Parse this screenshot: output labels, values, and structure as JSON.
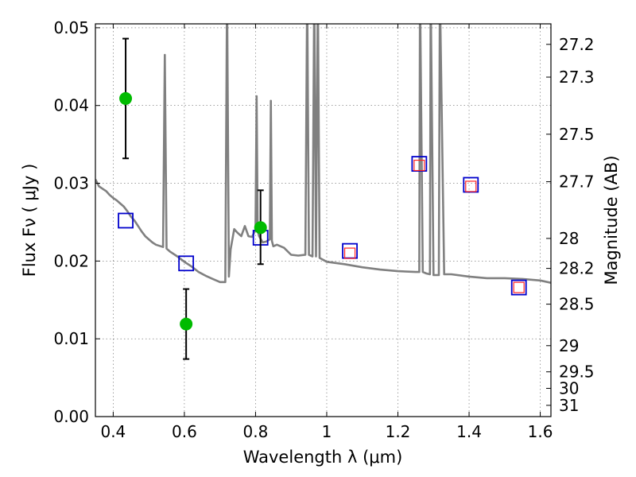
{
  "chart_data": {
    "type": "scatter",
    "xlabel": "Wavelength  λ (μm)",
    "ylabel": "Flux  Fν  ( μJy )",
    "y2label": "Magnitude (AB)",
    "xlim": [
      0.35,
      1.63
    ],
    "ylim": [
      0.0,
      0.0505
    ],
    "grid": true,
    "x_ticks": [
      0.4,
      0.6,
      0.8,
      1.0,
      1.2,
      1.4,
      1.6
    ],
    "x_tick_labels": [
      "0.4",
      "0.6",
      "0.8",
      "1",
      "1.2",
      "1.4",
      "1.6"
    ],
    "y_ticks": [
      0.0,
      0.01,
      0.02,
      0.03,
      0.04,
      0.05
    ],
    "y_tick_labels": [
      "0.00",
      "0.01",
      "0.02",
      "0.03",
      "0.04",
      "0.05"
    ],
    "mag_ticks": [
      27.2,
      27.3,
      27.5,
      27.7,
      28,
      28.2,
      28.5,
      29,
      29.5,
      30,
      31
    ],
    "mag_tick_labels": [
      "27.2",
      "27.3",
      "27.5",
      "27.7",
      "28",
      "28.2",
      "28.5",
      "29",
      "29.5",
      "30",
      "31"
    ],
    "series": [
      {
        "name": "observed (green points with error bars)",
        "color": "#00bb00",
        "x": [
          0.435,
          0.605,
          0.814
        ],
        "y": [
          0.0409,
          0.0119,
          0.0243
        ],
        "yerr_low": [
          0.0332,
          0.0074,
          0.0196
        ],
        "yerr_high": [
          0.0486,
          0.0164,
          0.0291
        ]
      },
      {
        "name": "model photometry (blue squares)",
        "color": "#0000cc",
        "x": [
          0.435,
          0.605,
          0.814,
          1.065,
          1.26,
          1.405,
          1.54
        ],
        "y": [
          0.0252,
          0.0197,
          0.023,
          0.0213,
          0.0325,
          0.0298,
          0.0166
        ]
      },
      {
        "name": "photometry (red squares)",
        "color": "#ff2222",
        "x": [
          1.065,
          1.26,
          1.405,
          1.54
        ],
        "y": [
          0.021,
          0.0323,
          0.0296,
          0.0166
        ]
      }
    ],
    "spectrum": {
      "name": "model spectrum",
      "color": "#808080",
      "x": [
        0.35,
        0.36,
        0.37,
        0.38,
        0.39,
        0.4,
        0.41,
        0.42,
        0.43,
        0.44,
        0.45,
        0.46,
        0.47,
        0.48,
        0.49,
        0.5,
        0.51,
        0.52,
        0.54,
        0.545,
        0.55,
        0.56,
        0.58,
        0.6,
        0.62,
        0.64,
        0.66,
        0.68,
        0.7,
        0.715,
        0.72,
        0.725,
        0.73,
        0.74,
        0.75,
        0.76,
        0.77,
        0.78,
        0.79,
        0.8,
        0.803,
        0.806,
        0.81,
        0.82,
        0.83,
        0.84,
        0.843,
        0.846,
        0.85,
        0.86,
        0.88,
        0.9,
        0.92,
        0.94,
        0.945,
        0.95,
        0.96,
        0.965,
        0.97,
        0.975,
        0.98,
        1.0,
        1.05,
        1.1,
        1.15,
        1.2,
        1.25,
        1.26,
        1.262,
        1.27,
        1.28,
        1.29,
        1.292,
        1.3,
        1.315,
        1.318,
        1.33,
        1.35,
        1.4,
        1.45,
        1.5,
        1.55,
        1.6,
        1.63
      ],
      "y": [
        0.0305,
        0.0296,
        0.0293,
        0.029,
        0.0285,
        0.0281,
        0.0278,
        0.0274,
        0.027,
        0.0264,
        0.0257,
        0.0252,
        0.0245,
        0.0238,
        0.0232,
        0.0228,
        0.0224,
        0.0221,
        0.0218,
        0.0465,
        0.0216,
        0.0212,
        0.0206,
        0.0199,
        0.0193,
        0.0186,
        0.0181,
        0.0177,
        0.0173,
        0.0173,
        0.055,
        0.018,
        0.0215,
        0.0241,
        0.0236,
        0.0232,
        0.0245,
        0.0232,
        0.0231,
        0.024,
        0.0412,
        0.0239,
        0.0232,
        0.0224,
        0.0225,
        0.0228,
        0.0406,
        0.0226,
        0.0219,
        0.0221,
        0.0217,
        0.0208,
        0.0207,
        0.0208,
        0.055,
        0.0208,
        0.0206,
        0.055,
        0.0206,
        0.055,
        0.0204,
        0.0199,
        0.0196,
        0.0192,
        0.0189,
        0.0187,
        0.0186,
        0.0186,
        0.055,
        0.0186,
        0.0184,
        0.0183,
        0.055,
        0.0182,
        0.0182,
        0.055,
        0.0183,
        0.0183,
        0.018,
        0.0178,
        0.0178,
        0.0177,
        0.0175,
        0.0172
      ]
    }
  }
}
